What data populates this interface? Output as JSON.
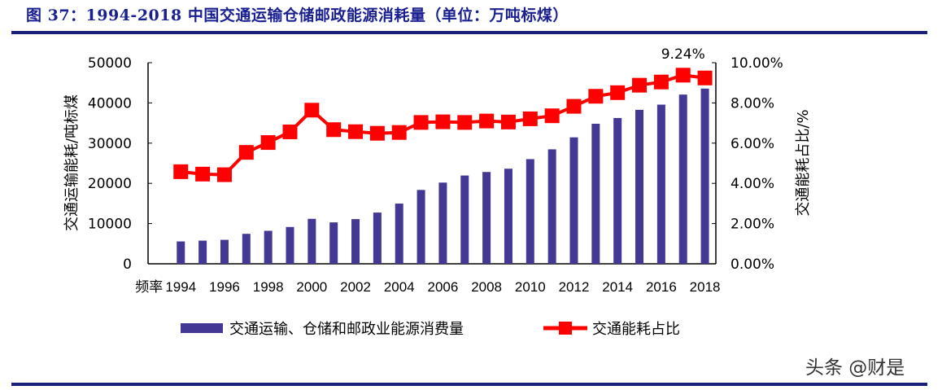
{
  "title": "图 37：1994-2018 中国交通运输仓储邮政能源消耗量（单位：万吨标煤）",
  "watermark": "头条 @财是",
  "colors": {
    "bar": "#433894",
    "line": "#ff0000",
    "title": "#1a2090",
    "rule": "#1a1f7a"
  },
  "chart_data": {
    "type": "bar+line",
    "categories": [
      "频率",
      "1994",
      "1995",
      "1996",
      "1997",
      "1998",
      "1999",
      "2000",
      "2001",
      "2002",
      "2003",
      "2004",
      "2005",
      "2006",
      "2007",
      "2008",
      "2009",
      "2010",
      "2011",
      "2012",
      "2013",
      "2014",
      "2015",
      "2016",
      "2017",
      "2018"
    ],
    "x_tick_labels": [
      "频率",
      "1994",
      "1996",
      "1998",
      "2000",
      "2002",
      "2004",
      "2006",
      "2008",
      "2010",
      "2012",
      "2014",
      "2016",
      "2018"
    ],
    "y_left": {
      "label": "交通运输能耗/吨标煤",
      "ylim": [
        0,
        50000
      ],
      "ticks": [
        "0",
        "10000",
        "20000",
        "30000",
        "40000",
        "50000"
      ]
    },
    "y_right": {
      "label": "交通能耗占比/%",
      "ylim": [
        0,
        10
      ],
      "ticks": [
        "0.00%",
        "2.00%",
        "4.00%",
        "6.00%",
        "8.00%",
        "10.00%"
      ]
    },
    "series": [
      {
        "name": "交通运输、仓储和邮政业能源消费量",
        "type": "bar",
        "axis": "left",
        "values": [
          null,
          5560,
          5760,
          5960,
          7450,
          8200,
          9150,
          11180,
          10300,
          11110,
          12740,
          14970,
          18360,
          20190,
          21950,
          22830,
          23640,
          26020,
          28460,
          31440,
          34820,
          36250,
          38280,
          39570,
          42070,
          43560
        ]
      },
      {
        "name": "交通能耗占比",
        "type": "line",
        "axis": "right",
        "marker": "square",
        "values": [
          null,
          4.58,
          4.46,
          4.43,
          5.54,
          6.03,
          6.56,
          7.64,
          6.67,
          6.57,
          6.49,
          6.53,
          7.03,
          7.06,
          7.03,
          7.1,
          7.05,
          7.21,
          7.36,
          7.83,
          8.33,
          8.51,
          8.88,
          9.04,
          9.38,
          9.24
        ]
      }
    ],
    "annotations": [
      {
        "text": "9.24%",
        "category": "2017"
      }
    ],
    "legend": "bottom",
    "grid": false
  }
}
